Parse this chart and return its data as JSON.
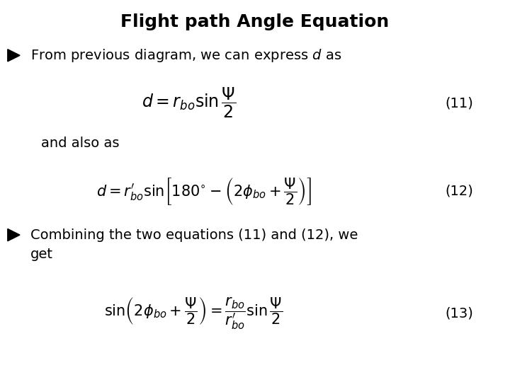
{
  "title": "Flight path Angle Equation",
  "bg_color": "#ffffff",
  "text_color": "#000000",
  "title_fontsize": 18,
  "body_fontsize": 14,
  "eq_fontsize": 16,
  "label_fontsize": 14,
  "bullet1": "From previous diagram, we can express $d$ as",
  "eq1": "$d = r_{bo} \\sin\\dfrac{\\Psi}{2}$",
  "eq1_label": "(11)",
  "mid_text": "and also as",
  "eq2": "$d = r_{bo}^{\\prime} \\sin\\!\\left[180^{\\circ} - \\left(2\\phi_{bo} + \\dfrac{\\Psi}{2}\\right)\\right]$",
  "eq2_label": "(12)",
  "bullet2_line1": "Combining the two equations (11) and (12), we",
  "bullet2_line2": "get",
  "eq3": "$\\sin\\!\\left(2\\phi_{bo} + \\dfrac{\\Psi}{2}\\right) = \\dfrac{r_{bo}}{r_{bo}^{\\prime}}\\sin\\dfrac{\\Psi}{2}$",
  "eq3_label": "(13)"
}
